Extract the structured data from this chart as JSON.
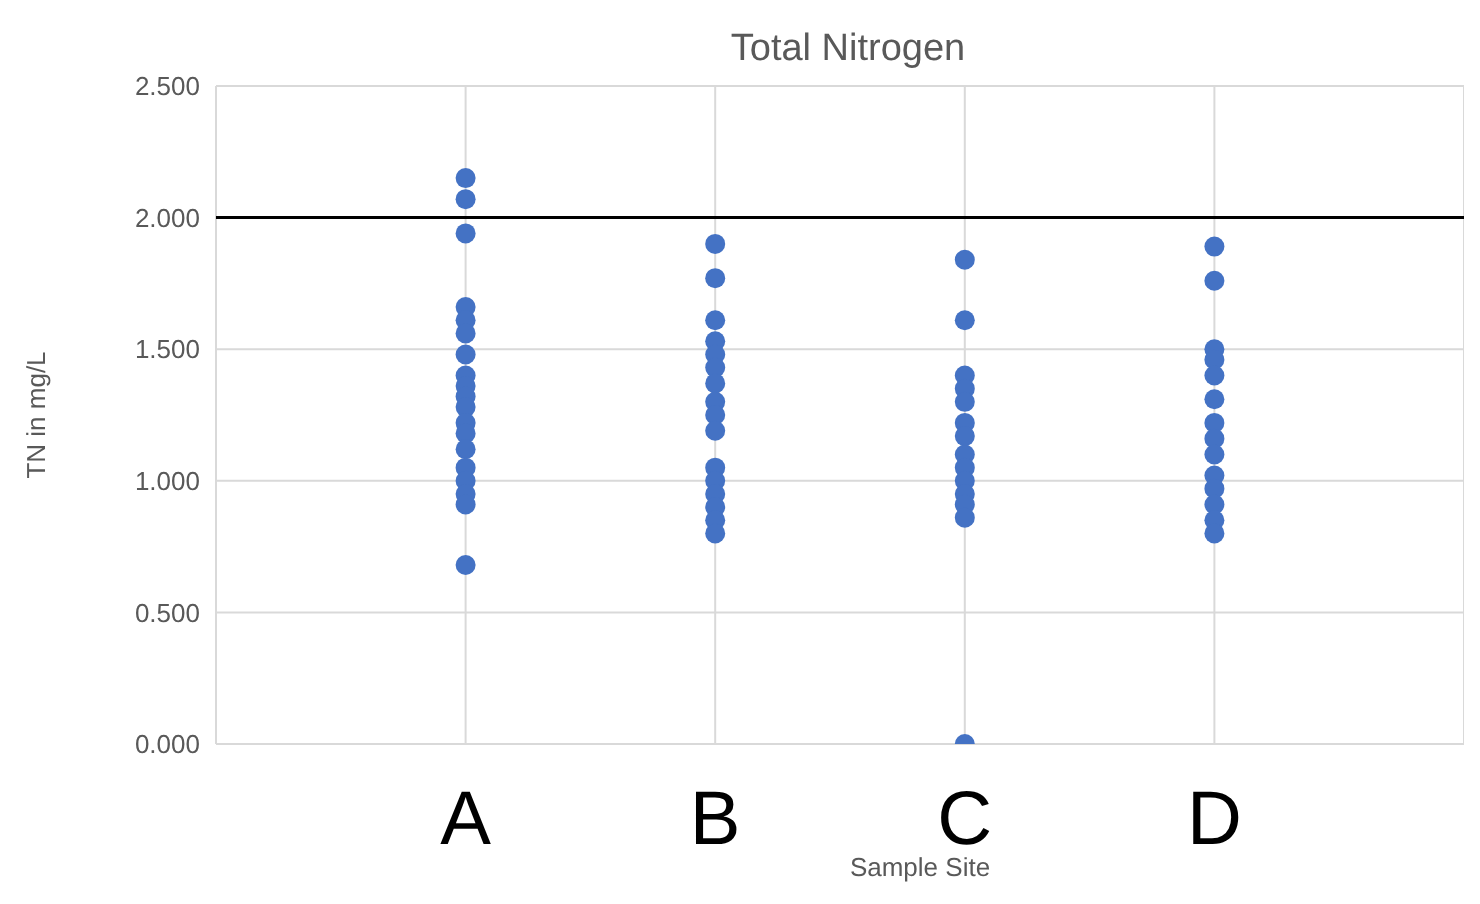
{
  "chart_data": {
    "type": "scatter",
    "title": "Total Nitrogen",
    "xlabel": "Sample Site",
    "ylabel": "TN in mg/L",
    "categories": [
      "A",
      "B",
      "C",
      "D"
    ],
    "series": [
      {
        "color": "#4472c4",
        "x": [
          "A",
          "A",
          "A",
          "A",
          "A",
          "A",
          "A",
          "A",
          "A",
          "A",
          "A",
          "A",
          "A",
          "A",
          "A",
          "A",
          "A",
          "A",
          "A"
        ],
        "values": [
          2.15,
          2.07,
          1.94,
          1.66,
          1.61,
          1.56,
          1.48,
          1.4,
          1.36,
          1.32,
          1.28,
          1.22,
          1.18,
          1.12,
          1.05,
          1.0,
          0.95,
          0.91,
          0.68
        ]
      },
      {
        "color": "#4472c4",
        "x": [
          "B",
          "B",
          "B",
          "B",
          "B",
          "B",
          "B",
          "B",
          "B",
          "B",
          "B",
          "B",
          "B",
          "B",
          "B",
          "B"
        ],
        "values": [
          1.9,
          1.77,
          1.61,
          1.53,
          1.48,
          1.43,
          1.37,
          1.3,
          1.25,
          1.19,
          1.05,
          1.0,
          0.95,
          0.9,
          0.85,
          0.8
        ]
      },
      {
        "color": "#4472c4",
        "x": [
          "C",
          "C",
          "C",
          "C",
          "C",
          "C",
          "C",
          "C",
          "C",
          "C",
          "C",
          "C",
          "C",
          "C"
        ],
        "values": [
          1.84,
          1.61,
          1.4,
          1.35,
          1.3,
          1.22,
          1.17,
          1.1,
          1.05,
          1.0,
          0.95,
          0.91,
          0.86,
          0.0
        ]
      },
      {
        "color": "#4472c4",
        "x": [
          "D",
          "D",
          "D",
          "D",
          "D",
          "D",
          "D",
          "D",
          "D",
          "D",
          "D",
          "D",
          "D",
          "D"
        ],
        "values": [
          1.89,
          1.76,
          1.5,
          1.46,
          1.4,
          1.31,
          1.22,
          1.16,
          1.1,
          1.02,
          0.97,
          0.91,
          0.85,
          0.8
        ]
      }
    ],
    "ylim": [
      0,
      2.5
    ],
    "yticks": [
      {
        "value": 0,
        "label": "0.000"
      },
      {
        "value": 0.5,
        "label": "0.500"
      },
      {
        "value": 1,
        "label": "1.000"
      },
      {
        "value": 1.5,
        "label": "1.500"
      },
      {
        "value": 2,
        "label": "2.000"
      },
      {
        "value": 2.5,
        "label": "2.500"
      }
    ],
    "ref_lines": [
      {
        "axis": "y",
        "value": 2,
        "color": "#000000"
      }
    ],
    "grid": true,
    "marker": "circle"
  }
}
